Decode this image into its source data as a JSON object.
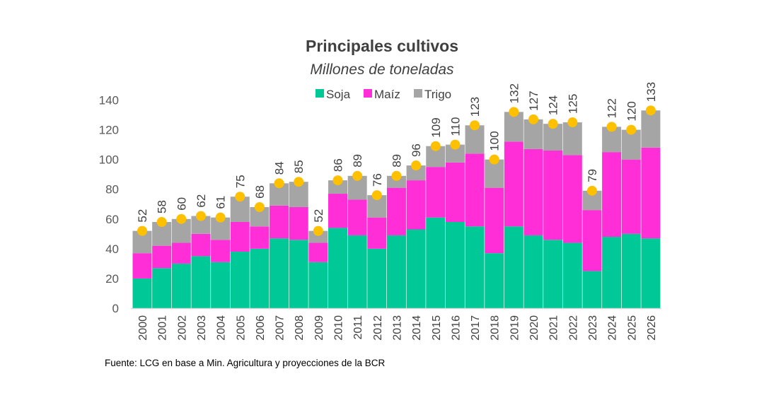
{
  "chart_data": {
    "type": "bar",
    "stacked": true,
    "title": "Principales cultivos",
    "subtitle": "Millones de toneladas",
    "source": "Fuente: LCG en base a Min. Agricultura y proyecciones de la BCR",
    "categories": [
      "2000",
      "2001",
      "2002",
      "2003",
      "2004",
      "2005",
      "2006",
      "2007",
      "2008",
      "2009",
      "2010",
      "2011",
      "2012",
      "2013",
      "2014",
      "2015",
      "2016",
      "2017",
      "2018",
      "2019",
      "2020",
      "2021",
      "2022",
      "2023",
      "2024",
      "2025",
      "2026"
    ],
    "series": [
      {
        "name": "Soja",
        "color": "#00C896",
        "values": [
          20,
          27,
          30,
          35,
          31,
          38,
          40,
          47,
          46,
          31,
          54,
          49,
          40,
          49,
          53,
          61,
          58,
          55,
          37,
          55,
          49,
          46,
          44,
          25,
          48,
          50,
          47
        ]
      },
      {
        "name": "Maíz",
        "color": "#FF2ED6",
        "values": [
          17,
          15,
          14,
          15,
          15,
          20,
          15,
          22,
          22,
          13,
          23,
          24,
          21,
          32,
          33,
          34,
          40,
          49,
          44,
          57,
          58,
          60,
          59,
          41,
          57,
          50,
          61
        ]
      },
      {
        "name": "Trigo",
        "color": "#A5A5A5",
        "values": [
          15,
          16,
          16,
          12,
          15,
          17,
          13,
          15,
          17,
          8,
          9,
          16,
          15,
          8,
          10,
          14,
          12,
          19,
          19,
          20,
          20,
          18,
          22,
          13,
          17,
          20,
          25
        ]
      }
    ],
    "totals": [
      52,
      58,
      60,
      62,
      61,
      75,
      68,
      84,
      85,
      52,
      86,
      89,
      76,
      89,
      96,
      109,
      110,
      123,
      100,
      132,
      127,
      124,
      125,
      79,
      122,
      120,
      133
    ],
    "total_marker_color": "#FFC000",
    "yticks": [
      0,
      20,
      40,
      60,
      80,
      100,
      120,
      140
    ],
    "ylim": [
      0,
      140
    ],
    "grid": false,
    "legend_position": "top"
  }
}
